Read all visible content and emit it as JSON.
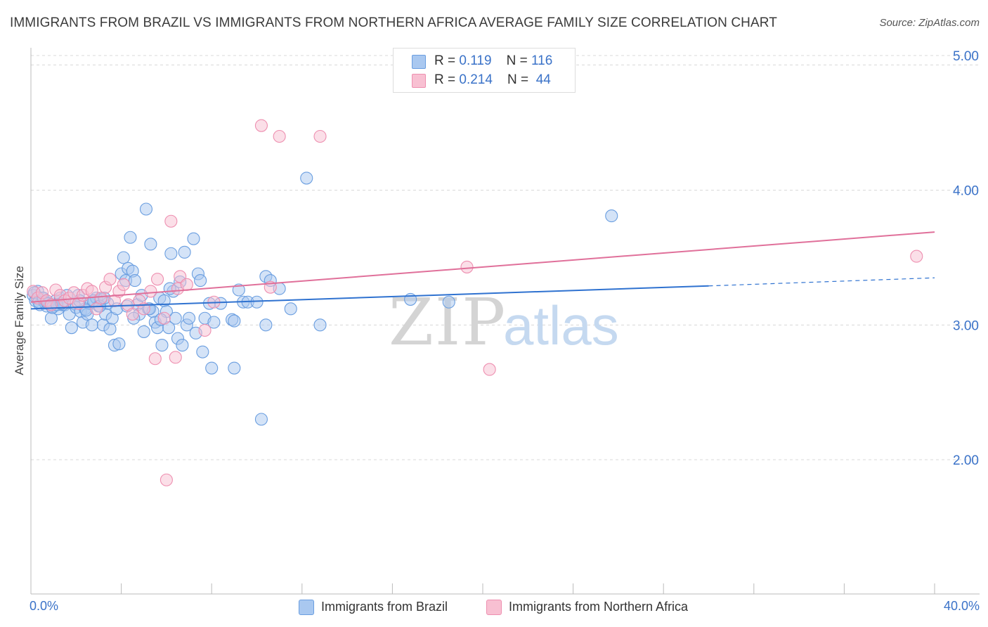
{
  "title": "IMMIGRANTS FROM BRAZIL VS IMMIGRANTS FROM NORTHERN AFRICA AVERAGE FAMILY SIZE CORRELATION CHART",
  "source": "Source: ZipAtlas.com",
  "watermark": {
    "zip": "ZIP",
    "atlas": "atlas"
  },
  "legend_top": [
    {
      "r_label": "R = ",
      "r_value": "0.119",
      "n_label": "N = ",
      "n_value": "116"
    },
    {
      "r_label": "R = ",
      "r_value": "0.214",
      "n_label": "N = ",
      "n_value": "44"
    }
  ],
  "colors": {
    "blue_fill": "#a9c8f0",
    "blue_stroke": "#6a9ee0",
    "blue_line": "#2f72d0",
    "pink_fill": "#f8c0d2",
    "pink_stroke": "#ee8fb0",
    "pink_line": "#e0709a",
    "tick_text": "#3a72c8",
    "grid": "#d8d8d8"
  },
  "chart_data": {
    "type": "scatter",
    "title": "IMMIGRANTS FROM BRAZIL VS IMMIGRANTS FROM NORTHERN AFRICA AVERAGE FAMILY SIZE CORRELATION CHART",
    "xlabel": "",
    "ylabel": "Average Family Size",
    "xlim": [
      0,
      40
    ],
    "ylim": [
      1.0,
      5.2
    ],
    "x_tick_labels": [
      "0.0%",
      "40.0%"
    ],
    "y_ticks": [
      2.0,
      3.0,
      4.0,
      5.0
    ],
    "y_tick_labels": [
      "2.00",
      "3.00",
      "4.00",
      "5.00"
    ],
    "grid": true,
    "legend_position": "top-center",
    "series": [
      {
        "name": "Immigrants from Brazil",
        "color": "#a9c8f0",
        "trend": {
          "x": [
            0,
            30
          ],
          "y": [
            3.12,
            3.29
          ],
          "dashed_to": [
            40,
            3.35
          ]
        },
        "points": [
          [
            0.1,
            3.22
          ],
          [
            0.2,
            3.18
          ],
          [
            0.3,
            3.25
          ],
          [
            0.4,
            3.15
          ],
          [
            0.5,
            3.2
          ],
          [
            0.6,
            3.17
          ],
          [
            0.7,
            3.14
          ],
          [
            0.8,
            3.16
          ],
          [
            0.9,
            3.05
          ],
          [
            1.0,
            3.14
          ],
          [
            1.1,
            3.18
          ],
          [
            1.2,
            3.12
          ],
          [
            1.3,
            3.2
          ],
          [
            1.4,
            3.15
          ],
          [
            1.5,
            3.15
          ],
          [
            1.6,
            3.22
          ],
          [
            1.7,
            3.08
          ],
          [
            1.8,
            2.98
          ],
          [
            1.9,
            3.16
          ],
          [
            2.0,
            3.13
          ],
          [
            2.1,
            3.22
          ],
          [
            2.2,
            3.1
          ],
          [
            2.3,
            3.02
          ],
          [
            2.4,
            3.12
          ],
          [
            2.5,
            3.08
          ],
          [
            2.6,
            3.16
          ],
          [
            2.7,
            3.0
          ],
          [
            2.8,
            3.18
          ],
          [
            2.9,
            3.2
          ],
          [
            3.0,
            3.14
          ],
          [
            3.1,
            3.19
          ],
          [
            3.2,
            3.0
          ],
          [
            3.3,
            3.08
          ],
          [
            3.4,
            3.16
          ],
          [
            3.5,
            2.97
          ],
          [
            3.6,
            3.05
          ],
          [
            3.7,
            2.85
          ],
          [
            3.8,
            3.12
          ],
          [
            3.9,
            2.86
          ],
          [
            4.0,
            3.38
          ],
          [
            4.1,
            3.5
          ],
          [
            4.2,
            3.33
          ],
          [
            4.3,
            3.42
          ],
          [
            4.4,
            3.65
          ],
          [
            4.5,
            3.4
          ],
          [
            4.6,
            3.33
          ],
          [
            4.7,
            3.15
          ],
          [
            4.8,
            3.08
          ],
          [
            4.9,
            3.22
          ],
          [
            5.0,
            2.95
          ],
          [
            5.1,
            3.86
          ],
          [
            5.2,
            3.12
          ],
          [
            5.3,
            3.6
          ],
          [
            5.4,
            3.1
          ],
          [
            5.5,
            3.02
          ],
          [
            5.6,
            2.98
          ],
          [
            5.7,
            3.2
          ],
          [
            5.8,
            2.85
          ],
          [
            5.9,
            3.18
          ],
          [
            6.0,
            3.1
          ],
          [
            6.1,
            2.98
          ],
          [
            6.2,
            3.53
          ],
          [
            6.3,
            3.25
          ],
          [
            6.4,
            3.05
          ],
          [
            6.5,
            2.9
          ],
          [
            6.6,
            3.32
          ],
          [
            6.7,
            2.85
          ],
          [
            6.8,
            3.54
          ],
          [
            6.9,
            3.0
          ],
          [
            7.0,
            3.05
          ],
          [
            7.2,
            3.64
          ],
          [
            7.3,
            2.94
          ],
          [
            7.4,
            3.38
          ],
          [
            7.5,
            3.33
          ],
          [
            7.6,
            2.8
          ],
          [
            7.7,
            3.05
          ],
          [
            7.9,
            3.16
          ],
          [
            8.0,
            2.68
          ],
          [
            8.1,
            3.02
          ],
          [
            8.4,
            3.16
          ],
          [
            8.9,
            3.04
          ],
          [
            9.0,
            3.03
          ],
          [
            9.0,
            2.68
          ],
          [
            9.2,
            3.26
          ],
          [
            9.4,
            3.17
          ],
          [
            9.6,
            3.17
          ],
          [
            10.0,
            3.17
          ],
          [
            10.2,
            2.3
          ],
          [
            10.4,
            3.0
          ],
          [
            10.4,
            3.36
          ],
          [
            10.6,
            3.33
          ],
          [
            11.0,
            3.27
          ],
          [
            11.5,
            3.12
          ],
          [
            12.2,
            4.09
          ],
          [
            12.8,
            3.0
          ],
          [
            16.8,
            3.19
          ],
          [
            18.5,
            3.17
          ],
          [
            25.7,
            3.81
          ],
          [
            0.15,
            3.24
          ],
          [
            0.35,
            3.17
          ],
          [
            0.55,
            3.2
          ],
          [
            0.75,
            3.16
          ],
          [
            0.95,
            3.13
          ],
          [
            1.15,
            3.15
          ],
          [
            1.35,
            3.16
          ],
          [
            2.15,
            3.18
          ],
          [
            2.45,
            3.11
          ],
          [
            2.75,
            3.18
          ],
          [
            3.05,
            3.14
          ],
          [
            3.25,
            3.2
          ],
          [
            4.25,
            3.14
          ],
          [
            4.55,
            3.05
          ],
          [
            5.25,
            3.12
          ],
          [
            5.75,
            3.04
          ],
          [
            6.15,
            3.27
          ]
        ]
      },
      {
        "name": "Immigrants from Northern Africa",
        "color": "#f8c0d2",
        "trend": {
          "x": [
            0,
            40
          ],
          "y": [
            3.17,
            3.69
          ]
        },
        "points": [
          [
            0.1,
            3.25
          ],
          [
            0.3,
            3.2
          ],
          [
            0.5,
            3.24
          ],
          [
            0.7,
            3.18
          ],
          [
            0.9,
            3.15
          ],
          [
            1.1,
            3.26
          ],
          [
            1.3,
            3.22
          ],
          [
            1.5,
            3.18
          ],
          [
            1.7,
            3.2
          ],
          [
            1.9,
            3.24
          ],
          [
            2.1,
            3.16
          ],
          [
            2.3,
            3.22
          ],
          [
            2.5,
            3.27
          ],
          [
            2.7,
            3.25
          ],
          [
            2.9,
            3.12
          ],
          [
            3.1,
            3.2
          ],
          [
            3.3,
            3.28
          ],
          [
            3.5,
            3.34
          ],
          [
            3.7,
            3.18
          ],
          [
            3.9,
            3.25
          ],
          [
            4.1,
            3.3
          ],
          [
            4.3,
            3.15
          ],
          [
            4.5,
            3.08
          ],
          [
            4.8,
            3.18
          ],
          [
            5.0,
            3.12
          ],
          [
            5.3,
            3.25
          ],
          [
            5.5,
            2.75
          ],
          [
            5.6,
            3.34
          ],
          [
            5.9,
            3.05
          ],
          [
            6.0,
            1.85
          ],
          [
            6.2,
            3.77
          ],
          [
            6.4,
            2.76
          ],
          [
            6.5,
            3.27
          ],
          [
            6.6,
            3.36
          ],
          [
            6.9,
            3.3
          ],
          [
            7.7,
            2.96
          ],
          [
            8.1,
            3.17
          ],
          [
            10.2,
            4.48
          ],
          [
            10.6,
            3.28
          ],
          [
            11.0,
            4.4
          ],
          [
            12.8,
            4.4
          ],
          [
            19.3,
            3.43
          ],
          [
            20.3,
            2.67
          ],
          [
            39.2,
            3.51
          ]
        ]
      }
    ]
  },
  "legend_bottom": [
    {
      "label": "Immigrants from Brazil"
    },
    {
      "label": "Immigrants from Northern Africa"
    }
  ]
}
